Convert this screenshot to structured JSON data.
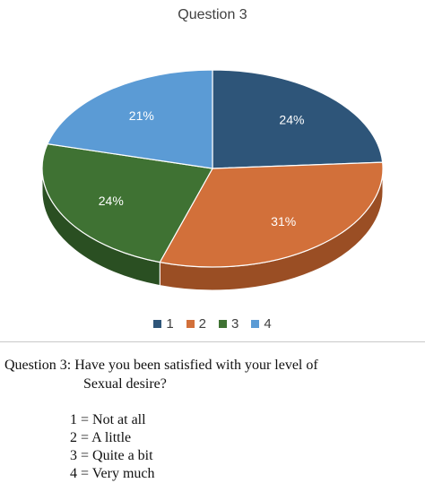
{
  "chart_data": {
    "type": "pie",
    "title": "Question 3",
    "categories": [
      "1",
      "2",
      "3",
      "4"
    ],
    "values": [
      24,
      31,
      24,
      21
    ],
    "data_labels": [
      "24%",
      "31%",
      "24%",
      "21%"
    ],
    "colors": [
      "#2e5579",
      "#d2703a",
      "#3f7233",
      "#5b9bd5"
    ],
    "side_colors": [
      "#1f3b55",
      "#9a4e24",
      "#2a4f22",
      "#3e74a4"
    ],
    "style": "3d",
    "legend": "bottom"
  },
  "caption": {
    "question_line1": "Question 3: Have you been satisfied with your level of",
    "question_line2": "Sexual desire?",
    "scale": [
      "1 = Not at all",
      "2 = A little",
      "3 = Quite a bit",
      "4 = Very much"
    ]
  }
}
